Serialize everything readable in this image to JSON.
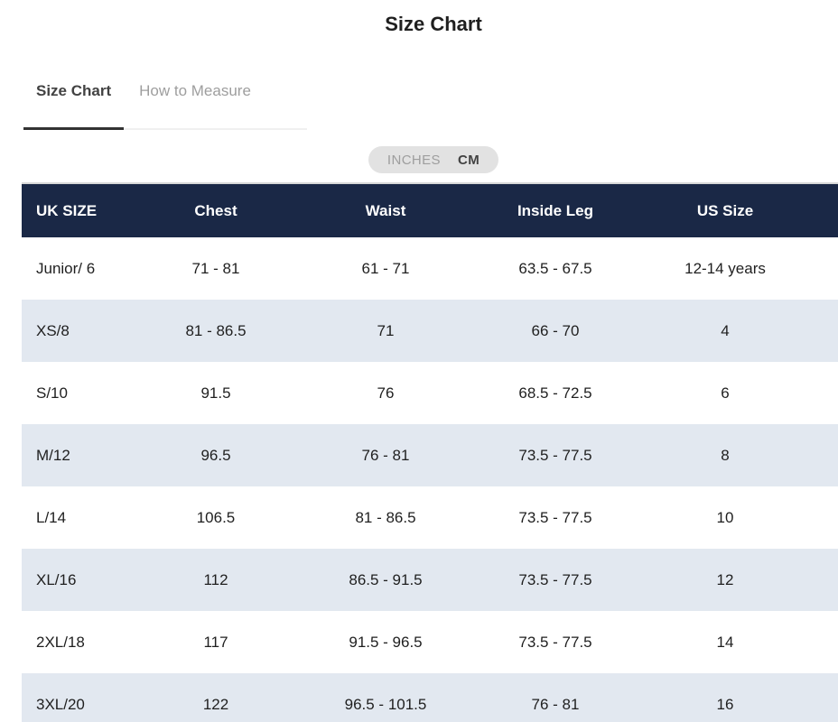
{
  "page": {
    "title": "Size Chart"
  },
  "tabs": [
    {
      "label": "Size Chart",
      "active": true
    },
    {
      "label": "How to Measure",
      "active": false
    }
  ],
  "unit_toggle": {
    "options": [
      {
        "label": "INCHES",
        "selected": false
      },
      {
        "label": "CM",
        "selected": true
      }
    ]
  },
  "table": {
    "columns": [
      "UK SIZE",
      "Chest",
      "Waist",
      "Inside Leg",
      "US Size"
    ],
    "rows": [
      [
        "Junior/ 6",
        "71 - 81",
        "61 - 71",
        "63.5 - 67.5",
        "12-14 years"
      ],
      [
        "XS/8",
        "81 - 86.5",
        "71",
        "66 - 70",
        "4"
      ],
      [
        "S/10",
        "91.5",
        "76",
        "68.5 - 72.5",
        "6"
      ],
      [
        "M/12",
        "96.5",
        "76 - 81",
        "73.5 - 77.5",
        "8"
      ],
      [
        "L/14",
        "106.5",
        "81 - 86.5",
        "73.5 - 77.5",
        "10"
      ],
      [
        "XL/16",
        "112",
        "86.5 - 91.5",
        "73.5 - 77.5",
        "12"
      ],
      [
        "2XL/18",
        "117",
        "91.5 - 96.5",
        "73.5 - 77.5",
        "14"
      ],
      [
        "3XL/20",
        "122",
        "96.5 - 101.5",
        "76 - 81",
        "16"
      ]
    ]
  },
  "colors": {
    "header_bg": "#1a2846",
    "header_text": "#ffffff",
    "row_alt_bg": "#e2e8f0",
    "active_tab_text": "#424242",
    "inactive_tab_text": "#9e9e9e"
  }
}
